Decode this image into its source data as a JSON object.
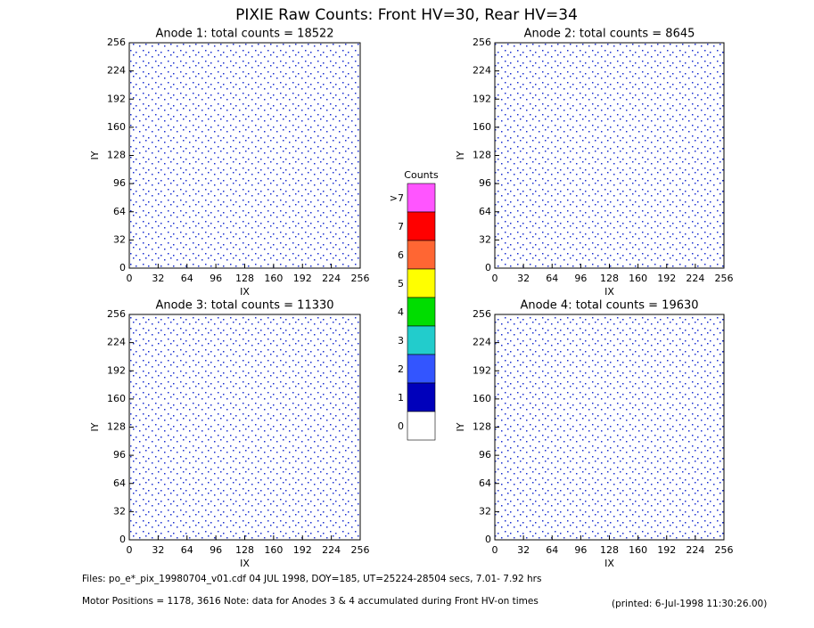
{
  "title": "PIXIE Raw Counts:  Front HV=30, Rear HV=34",
  "chart_data": [
    {
      "type": "image",
      "title": "Anode 1: total counts = 18522",
      "xlabel": "IX",
      "ylabel": "IY",
      "xlim": [
        0,
        256
      ],
      "ylim": [
        0,
        256
      ],
      "xticks": [
        0,
        32,
        64,
        96,
        128,
        160,
        192,
        224,
        256
      ],
      "yticks": [
        0,
        32,
        64,
        96,
        128,
        160,
        192,
        224,
        256
      ]
    },
    {
      "type": "image",
      "title": "Anode 2: total counts = 8645",
      "xlabel": "IX",
      "ylabel": "IY",
      "xlim": [
        0,
        256
      ],
      "ylim": [
        0,
        256
      ],
      "xticks": [
        0,
        32,
        64,
        96,
        128,
        160,
        192,
        224,
        256
      ],
      "yticks": [
        0,
        32,
        64,
        96,
        128,
        160,
        192,
        224,
        256
      ]
    },
    {
      "type": "image",
      "title": "Anode 3: total counts = 11330",
      "xlabel": "IX",
      "ylabel": "IY",
      "xlim": [
        0,
        256
      ],
      "ylim": [
        0,
        256
      ],
      "xticks": [
        0,
        32,
        64,
        96,
        128,
        160,
        192,
        224,
        256
      ],
      "yticks": [
        0,
        32,
        64,
        96,
        128,
        160,
        192,
        224,
        256
      ]
    },
    {
      "type": "image",
      "title": "Anode 4: total counts = 19630",
      "xlabel": "IX",
      "ylabel": "IY",
      "xlim": [
        0,
        256
      ],
      "ylim": [
        0,
        256
      ],
      "xticks": [
        0,
        32,
        64,
        96,
        128,
        160,
        192,
        224,
        256
      ],
      "yticks": [
        0,
        32,
        64,
        96,
        128,
        160,
        192,
        224,
        256
      ]
    }
  ],
  "colorbar": {
    "title": "Counts",
    "labels": [
      ">7",
      "7",
      "6",
      "5",
      "4",
      "3",
      "2",
      "1",
      "0"
    ],
    "colors": [
      "#ff55ff",
      "#ff0000",
      "#ff6633",
      "#ffff00",
      "#00dd00",
      "#22cccc",
      "#3355ff",
      "#0000bb",
      "#ffffff"
    ]
  },
  "footer": {
    "files": "Files: po_e*_pix_19980704_v01.cdf    04 JUL 1998, DOY=185, UT=25224-28504 secs,  7.01- 7.92 hrs",
    "motor": "Motor Positions = 1178, 3616   Note: data for Anodes 3 & 4 accumulated during Front HV-on times",
    "printed": "(printed:  6-Jul-1998 11:30:26.00)"
  }
}
